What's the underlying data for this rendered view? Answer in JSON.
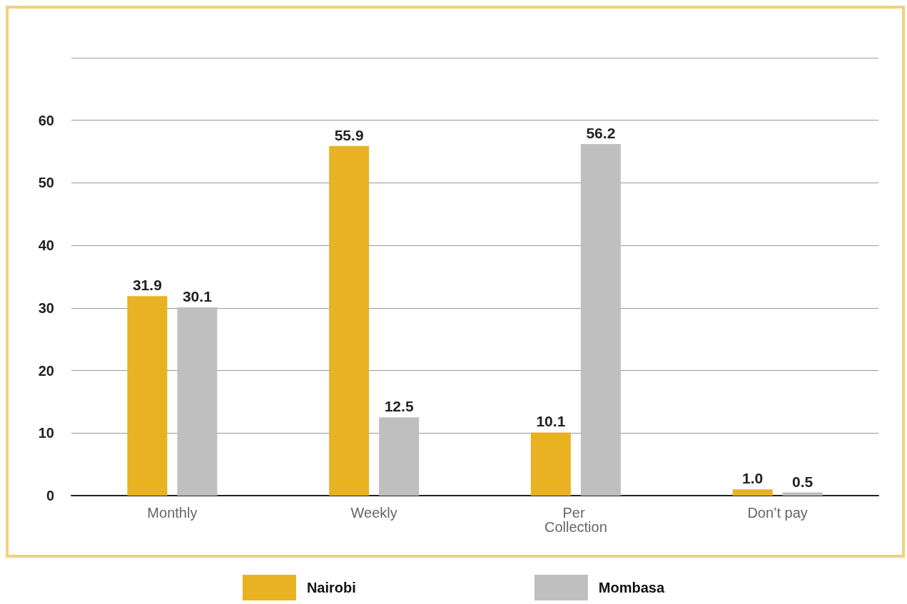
{
  "chart_data": {
    "type": "bar",
    "categories": [
      "Monthly",
      "Weekly",
      "Per Collection",
      "Don’t pay"
    ],
    "series": [
      {
        "name": "Nairobi",
        "color": "#e8b222",
        "values": [
          31.9,
          55.9,
          10.1,
          1
        ],
        "value_labels": [
          "31.9",
          "55.9",
          "10.1",
          "1.0"
        ]
      },
      {
        "name": "Mombasa",
        "color": "#bfbfbf",
        "values": [
          30.1,
          12.5,
          56.2,
          0.5
        ],
        "value_labels": [
          "30.1",
          "12.5",
          "56.2",
          "0.5"
        ]
      }
    ],
    "ylim": [
      0,
      70
    ],
    "yticks": [
      0,
      10,
      20,
      30,
      40,
      50,
      60,
      {
        "value": 70,
        "label": null
      }
    ],
    "grid": "y",
    "legend": "bottom"
  }
}
